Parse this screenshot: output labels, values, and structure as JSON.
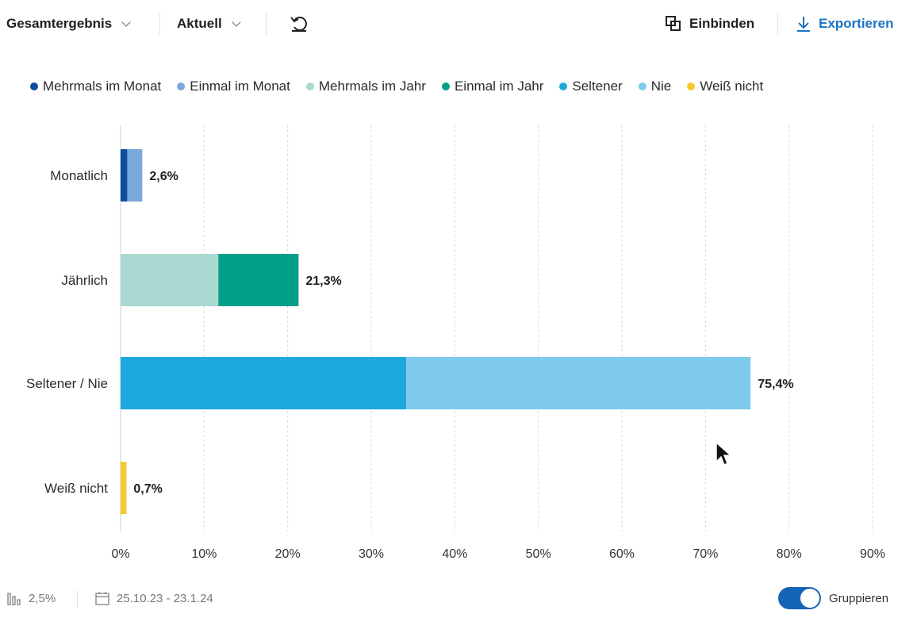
{
  "toolbar": {
    "filter_label": "Gesamtergebnis",
    "period_label": "Aktuell",
    "embed_label": "Einbinden",
    "export_label": "Exportieren"
  },
  "legend": [
    {
      "label": "Mehrmals im Monat",
      "color": "#0f4e9c"
    },
    {
      "label": "Einmal im Monat",
      "color": "#79a8da"
    },
    {
      "label": "Mehrmals im Jahr",
      "color": "#a9d8d0"
    },
    {
      "label": "Einmal im Jahr",
      "color": "#00a088"
    },
    {
      "label": "Seltener",
      "color": "#1ea8e0"
    },
    {
      "label": "Nie",
      "color": "#7ecaec"
    },
    {
      "label": "Weiß nicht",
      "color": "#f7c930"
    }
  ],
  "chart_data": {
    "type": "bar",
    "orientation": "horizontal",
    "stacked": true,
    "categories": [
      "Monatlich",
      "Jährlich",
      "Seltener / Nie",
      "Weiß nicht"
    ],
    "series": [
      {
        "name": "Mehrmals im Monat",
        "color": "#0f4e9c",
        "values": [
          0.8,
          0,
          0,
          0
        ]
      },
      {
        "name": "Einmal im Monat",
        "color": "#79a8da",
        "values": [
          1.8,
          0,
          0,
          0
        ]
      },
      {
        "name": "Mehrmals im Jahr",
        "color": "#a9d8d0",
        "values": [
          0,
          11.7,
          0,
          0
        ]
      },
      {
        "name": "Einmal im Jahr",
        "color": "#00a088",
        "values": [
          0,
          9.6,
          0,
          0
        ]
      },
      {
        "name": "Seltener",
        "color": "#1ea8e0",
        "values": [
          0,
          0,
          34.2,
          0
        ]
      },
      {
        "name": "Nie",
        "color": "#7ecaec",
        "values": [
          0,
          0,
          41.2,
          0
        ]
      },
      {
        "name": "Weiß nicht",
        "color": "#f7c930",
        "values": [
          0,
          0,
          0,
          0.7
        ]
      }
    ],
    "totals": [
      "2,6%",
      "21,3%",
      "75,4%",
      "0,7%"
    ],
    "xlim": [
      0,
      90
    ],
    "xticks": [
      0,
      10,
      20,
      30,
      40,
      50,
      60,
      70,
      80,
      90
    ],
    "xtick_labels": [
      "0%",
      "10%",
      "20%",
      "30%",
      "40%",
      "50%",
      "60%",
      "70%",
      "80%",
      "90%"
    ],
    "grid": true,
    "legend_position": "top"
  },
  "footer": {
    "threshold": "2,5%",
    "date_range": "25.10.23 - 23.1.24",
    "group_label": "Gruppieren"
  }
}
